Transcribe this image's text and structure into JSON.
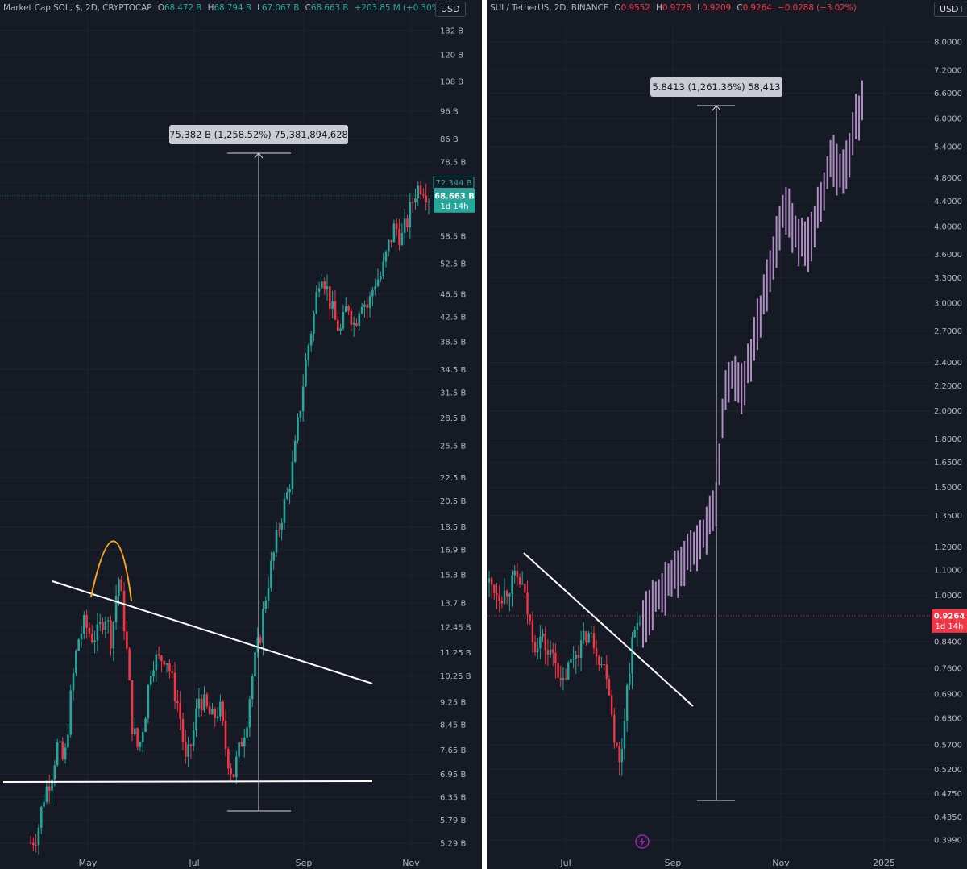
{
  "left": {
    "legend": {
      "title": "Market Cap SOL, $, 2D, CRYPTOCAP",
      "open_label": "O",
      "open": "68.472 B",
      "high_label": "H",
      "high": "68.794 B",
      "low_label": "L",
      "low": "67.067 B",
      "close_label": "C",
      "close": "68.663 B",
      "change": "+203.85 M (+0.30%)"
    },
    "currency": "USD",
    "measure_label": "75.382 B (1,258.52%) 75,381,894,628",
    "price_tag_upper": "72.344 B",
    "price_tag_main": "68.663 B",
    "price_tag_timer": "1d 14h",
    "colors": {
      "up": "#26a69a",
      "down": "#f23645",
      "annotation": "#f5a623"
    }
  },
  "right": {
    "legend": {
      "title": "SUI / TetherUS, 2D, BINANCE",
      "open_label": "O",
      "open": "0.9552",
      "high_label": "H",
      "high": "0.9728",
      "low_label": "L",
      "low": "0.9209",
      "close_label": "C",
      "close": "0.9264",
      "change": "−0.0288 (−3.02%)"
    },
    "currency": "USDT",
    "measure_label": "5.8413 (1,261.36%) 58,413",
    "price_tag_main": "0.9264",
    "price_tag_timer": "1d 14h",
    "colors": {
      "up": "#26a69a",
      "down": "#f23645",
      "projection": "#b08cc4"
    }
  },
  "chart_data": [
    {
      "type": "candlestick",
      "title": "Market Cap SOL, $, 2D, CRYPTOCAP",
      "scale": "log",
      "y_ticks": [
        "132 B",
        "120 B",
        "108 B",
        "96 B",
        "86 B",
        "78.5 B",
        "72.344 B",
        "58.5 B",
        "52.5 B",
        "46.5 B",
        "42.5 B",
        "38.5 B",
        "34.5 B",
        "31.5 B",
        "28.5 B",
        "25.5 B",
        "22.5 B",
        "20.5 B",
        "18.5 B",
        "16.9 B",
        "15.3 B",
        "13.7 B",
        "12.45 B",
        "11.25 B",
        "10.25 B",
        "9.25 B",
        "8.45 B",
        "7.65 B",
        "6.95 B",
        "6.35 B",
        "5.79 B",
        "5.29 B"
      ],
      "x_ticks": [
        "May",
        "Jul",
        "Sep",
        "Nov"
      ],
      "last_price": "68.663 B",
      "measurement": "75.382 B (1,258.52%) 75,381,894,628",
      "close_path_billions": [
        5.3,
        5.5,
        6.4,
        6.9,
        7.8,
        7.2,
        9.5,
        11.8,
        12.6,
        12.0,
        12.1,
        13.2,
        11.8,
        15.3,
        12.2,
        8.5,
        7.6,
        8.9,
        11.0,
        10.9,
        11.2,
        10.0,
        9.0,
        7.2,
        8.0,
        9.5,
        9.0,
        8.6,
        9.1,
        7.6,
        6.9,
        7.7,
        8.6,
        10.5,
        12.0,
        14.5,
        16.5,
        19.0,
        21.0,
        24.0,
        30.0,
        37.0,
        43.0,
        52.0,
        47.0,
        42.0,
        40.0,
        45.0,
        41.0,
        46.0,
        44.0,
        49.0,
        50.0,
        56.0,
        61.0,
        58.0,
        63.0,
        70.0,
        72.0,
        68.663
      ]
    },
    {
      "type": "candlestick",
      "title": "SUI / TetherUS, 2D, BINANCE",
      "scale": "log",
      "y_ticks": [
        "8.0000",
        "7.2000",
        "6.6000",
        "6.0000",
        "5.4000",
        "4.8000",
        "4.4000",
        "4.0000",
        "3.6000",
        "3.3000",
        "3.0000",
        "2.7000",
        "2.4000",
        "2.2000",
        "2.0000",
        "1.8000",
        "1.6500",
        "1.5000",
        "1.3500",
        "1.2000",
        "1.1000",
        "1.0000",
        "0.8400",
        "0.7600",
        "0.6900",
        "0.6300",
        "0.5700",
        "0.5200",
        "0.4750",
        "0.4350",
        "0.3990"
      ],
      "x_ticks": [
        "Jul",
        "Sep",
        "Nov",
        "2025"
      ],
      "last_price": "0.9264",
      "measurement": "5.8413 (1,261.36%) 58,413",
      "close_path": [
        1.05,
        1.02,
        1.0,
        1.03,
        1.07,
        1.04,
        0.92,
        0.83,
        0.86,
        0.8,
        0.81,
        0.7,
        0.76,
        0.8,
        0.83,
        0.87,
        0.84,
        0.78,
        0.75,
        0.6,
        0.52,
        0.7,
        0.86,
        0.93
      ],
      "projection_path": [
        0.92,
        0.96,
        0.99,
        1.02,
        1.05,
        1.08,
        1.12,
        1.16,
        1.2,
        1.24,
        1.28,
        1.35,
        1.5,
        2.2,
        2.3,
        2.25,
        2.2,
        2.4,
        2.7,
        3.0,
        3.3,
        3.6,
        4.2,
        4.3,
        4.0,
        3.8,
        3.7,
        3.9,
        4.3,
        4.6,
        5.3,
        5.0,
        4.9,
        5.4,
        6.0,
        6.4
      ]
    }
  ]
}
